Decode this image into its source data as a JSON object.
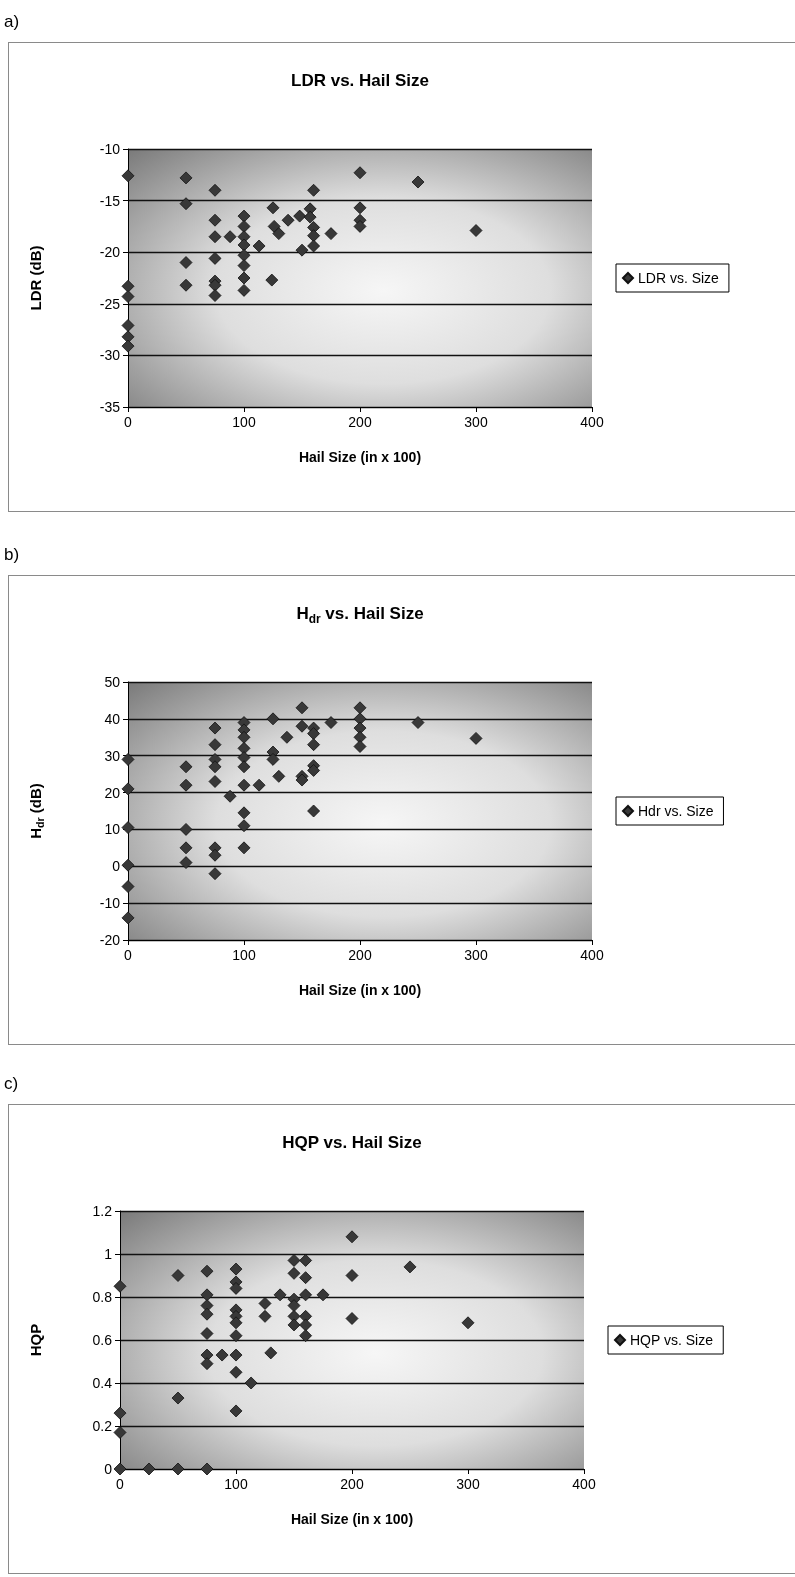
{
  "chart_data": [
    {
      "type": "scatter",
      "title": "LDR vs. Hail Size",
      "xlabel": "Hail Size (in x 100)",
      "ylabel": "LDR (dB)",
      "annotations": [
        "a)"
      ],
      "xlim": [
        0,
        400
      ],
      "xticks": [
        0,
        100,
        200,
        300,
        400
      ],
      "ylim": [
        -35,
        -10
      ],
      "yticks": [
        -35,
        -30,
        -25,
        -20,
        -15,
        -10
      ],
      "grid": "y",
      "legend": "right",
      "marker": "diamond",
      "series": [
        {
          "name": "LDR vs. Size",
          "color": "#383838",
          "x": [
            0,
            0,
            0,
            0,
            0,
            0,
            50,
            50,
            50,
            50,
            75,
            75,
            75,
            75,
            75,
            75,
            75,
            88,
            100,
            100,
            100,
            100,
            100,
            100,
            100,
            100,
            113,
            125,
            126,
            130,
            124,
            138,
            148,
            150,
            160,
            157,
            157,
            160,
            160,
            160,
            175,
            200,
            200,
            200,
            200,
            250,
            300
          ],
          "values": [
            -12.6,
            -23.3,
            -24.3,
            -27.1,
            -28.2,
            -29.1,
            -12.8,
            -15.3,
            -21.0,
            -23.2,
            -14.0,
            -16.9,
            -18.5,
            -20.6,
            -22.8,
            -23.2,
            -24.2,
            -18.5,
            -16.5,
            -17.5,
            -18.5,
            -19.3,
            -20.3,
            -21.3,
            -22.5,
            -23.7,
            -19.4,
            -15.7,
            -17.5,
            -18.2,
            -22.7,
            -16.9,
            -16.5,
            -19.8,
            -14.0,
            -15.8,
            -16.6,
            -17.6,
            -18.4,
            -19.4,
            -18.2,
            -12.3,
            -15.7,
            -16.9,
            -17.5,
            -13.2,
            -17.9
          ]
        }
      ]
    },
    {
      "type": "scatter",
      "title": "H$_{dr}$ vs. Hail Size",
      "xlabel": "Hail Size (in x 100)",
      "ylabel": "H$_{dr}$ (dB)",
      "annotations": [
        "b)"
      ],
      "xlim": [
        0,
        400
      ],
      "xticks": [
        0,
        100,
        200,
        300,
        400
      ],
      "ylim": [
        -20,
        50
      ],
      "yticks": [
        -20,
        -10,
        0,
        10,
        20,
        30,
        40,
        50
      ],
      "grid": "y",
      "legend": "right",
      "marker": "diamond",
      "series": [
        {
          "name": "Hdr vs. Size",
          "color": "#383838",
          "x": [
            0,
            0,
            0,
            0,
            0,
            0,
            50,
            50,
            50,
            50,
            50,
            75,
            75,
            75,
            75,
            75,
            75,
            75,
            75,
            88,
            100,
            100,
            100,
            100,
            100,
            100,
            100,
            100,
            100,
            100,
            113,
            125,
            125,
            125,
            130,
            137,
            150,
            150,
            150,
            150,
            160,
            160,
            160,
            160,
            160,
            160,
            175,
            200,
            200,
            200,
            200,
            200,
            250,
            300
          ],
          "values": [
            29,
            21,
            10.5,
            0.3,
            -5.5,
            -14,
            27,
            22,
            10,
            5,
            1,
            37.5,
            33,
            29,
            27,
            23,
            5,
            3,
            -2,
            19,
            39,
            37,
            35,
            32,
            29.5,
            27,
            22,
            14.5,
            11,
            5,
            22,
            40,
            31,
            29,
            24.4,
            35,
            43,
            38,
            24.4,
            23.4,
            37.5,
            36,
            33,
            27.3,
            26,
            15,
            39,
            43,
            40,
            37.5,
            35,
            32.5,
            39,
            34.7
          ]
        }
      ]
    },
    {
      "type": "scatter",
      "title": "HQP vs. Hail Size",
      "xlabel": "Hail Size (in x 100)",
      "ylabel": "HQP",
      "annotations": [
        "c)"
      ],
      "xlim": [
        0,
        400
      ],
      "xticks": [
        0,
        100,
        200,
        300,
        400
      ],
      "ylim": [
        0,
        1.2
      ],
      "yticks": [
        0,
        0.2,
        0.4,
        0.6,
        0.8,
        1,
        1.2
      ],
      "grid": "y",
      "legend": "right",
      "marker": "diamond",
      "series": [
        {
          "name": "HQP vs. Size",
          "color": "#383838",
          "x": [
            0,
            0,
            0,
            0,
            25,
            50,
            50,
            50,
            75,
            75,
            75,
            75,
            75,
            75,
            75,
            75,
            88,
            100,
            100,
            100,
            100,
            100,
            100,
            100,
            100,
            100,
            100,
            113,
            125,
            125,
            130,
            138,
            150,
            150,
            150,
            150,
            150,
            150,
            160,
            160,
            160,
            160,
            160,
            160,
            175,
            200,
            200,
            200,
            250,
            300
          ],
          "values": [
            0.85,
            0.26,
            0.17,
            0,
            0,
            0.9,
            0.33,
            0,
            0.92,
            0.81,
            0.76,
            0.72,
            0.63,
            0.53,
            0.49,
            0,
            0.53,
            0.93,
            0.87,
            0.84,
            0.74,
            0.71,
            0.68,
            0.62,
            0.53,
            0.45,
            0.27,
            0.4,
            0.77,
            0.71,
            0.54,
            0.81,
            0.97,
            0.91,
            0.79,
            0.76,
            0.71,
            0.67,
            0.97,
            0.89,
            0.81,
            0.71,
            0.67,
            0.62,
            0.81,
            1.08,
            0.9,
            0.7,
            0.94,
            0.68
          ]
        }
      ]
    }
  ]
}
